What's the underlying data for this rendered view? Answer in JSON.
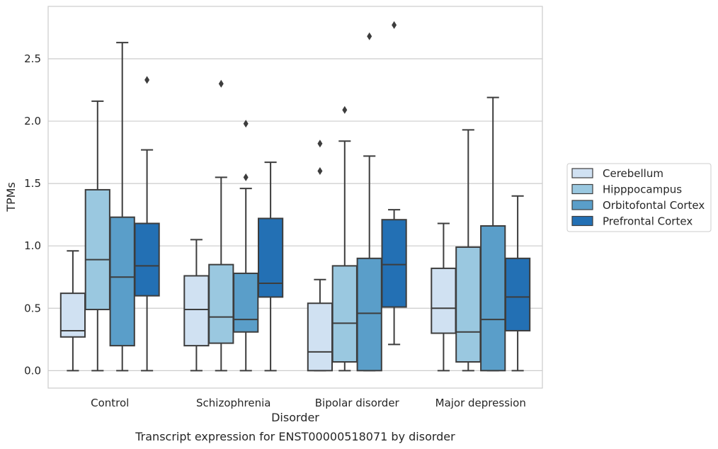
{
  "chart_data": {
    "type": "box",
    "title": "",
    "caption": "Transcript expression for ENST00000518071 by disorder",
    "xlabel": "Disorder",
    "ylabel": "TPMs",
    "ylim": [
      -0.14,
      2.92
    ],
    "yticks": [
      "0.0",
      "0.5",
      "1.0",
      "1.5",
      "2.0",
      "2.5"
    ],
    "grid": "horizontal",
    "legend_position": "right",
    "categories": [
      "Control",
      "Schizophrenia",
      "Bipolar disorder",
      "Major depression"
    ],
    "series": [
      {
        "name": "Cerebellum",
        "color": "#d0e1f2",
        "boxes": [
          {
            "whisker_low": 0.0,
            "q1": 0.27,
            "median": 0.32,
            "q3": 0.62,
            "whisker_high": 0.96,
            "outliers": []
          },
          {
            "whisker_low": 0.0,
            "q1": 0.2,
            "median": 0.49,
            "q3": 0.76,
            "whisker_high": 1.05,
            "outliers": []
          },
          {
            "whisker_low": 0.0,
            "q1": 0.0,
            "median": 0.15,
            "q3": 0.54,
            "whisker_high": 0.73,
            "outliers": [
              1.6,
              1.82
            ]
          },
          {
            "whisker_low": 0.0,
            "q1": 0.3,
            "median": 0.5,
            "q3": 0.82,
            "whisker_high": 1.18,
            "outliers": []
          }
        ]
      },
      {
        "name": "Hipppocampus",
        "color": "#9ac8e0",
        "boxes": [
          {
            "whisker_low": 0.0,
            "q1": 0.49,
            "median": 0.89,
            "q3": 1.45,
            "whisker_high": 2.16,
            "outliers": []
          },
          {
            "whisker_low": 0.0,
            "q1": 0.22,
            "median": 0.43,
            "q3": 0.85,
            "whisker_high": 1.55,
            "outliers": [
              2.3
            ]
          },
          {
            "whisker_low": 0.0,
            "q1": 0.07,
            "median": 0.38,
            "q3": 0.84,
            "whisker_high": 1.84,
            "outliers": [
              2.09
            ]
          },
          {
            "whisker_low": 0.0,
            "q1": 0.07,
            "median": 0.31,
            "q3": 0.99,
            "whisker_high": 1.93,
            "outliers": []
          }
        ]
      },
      {
        "name": "Orbitofontal Cortex",
        "color": "#5a9ec9",
        "boxes": [
          {
            "whisker_low": 0.0,
            "q1": 0.2,
            "median": 0.75,
            "q3": 1.23,
            "whisker_high": 2.63,
            "outliers": []
          },
          {
            "whisker_low": 0.0,
            "q1": 0.31,
            "median": 0.41,
            "q3": 0.78,
            "whisker_high": 1.46,
            "outliers": [
              1.55,
              1.98
            ]
          },
          {
            "whisker_low": 0.0,
            "q1": 0.0,
            "median": 0.46,
            "q3": 0.9,
            "whisker_high": 1.72,
            "outliers": [
              2.68
            ]
          },
          {
            "whisker_low": 0.0,
            "q1": 0.0,
            "median": 0.41,
            "q3": 1.16,
            "whisker_high": 2.19,
            "outliers": []
          }
        ]
      },
      {
        "name": "Prefrontal Cortex",
        "color": "#2370b4",
        "boxes": [
          {
            "whisker_low": 0.0,
            "q1": 0.6,
            "median": 0.84,
            "q3": 1.18,
            "whisker_high": 1.77,
            "outliers": [
              2.33
            ]
          },
          {
            "whisker_low": 0.0,
            "q1": 0.59,
            "median": 0.7,
            "q3": 1.22,
            "whisker_high": 1.67,
            "outliers": []
          },
          {
            "whisker_low": 0.21,
            "q1": 0.51,
            "median": 0.85,
            "q3": 1.21,
            "whisker_high": 1.29,
            "outliers": [
              2.77
            ]
          },
          {
            "whisker_low": 0.0,
            "q1": 0.32,
            "median": 0.59,
            "q3": 0.9,
            "whisker_high": 1.4,
            "outliers": []
          }
        ]
      }
    ]
  }
}
